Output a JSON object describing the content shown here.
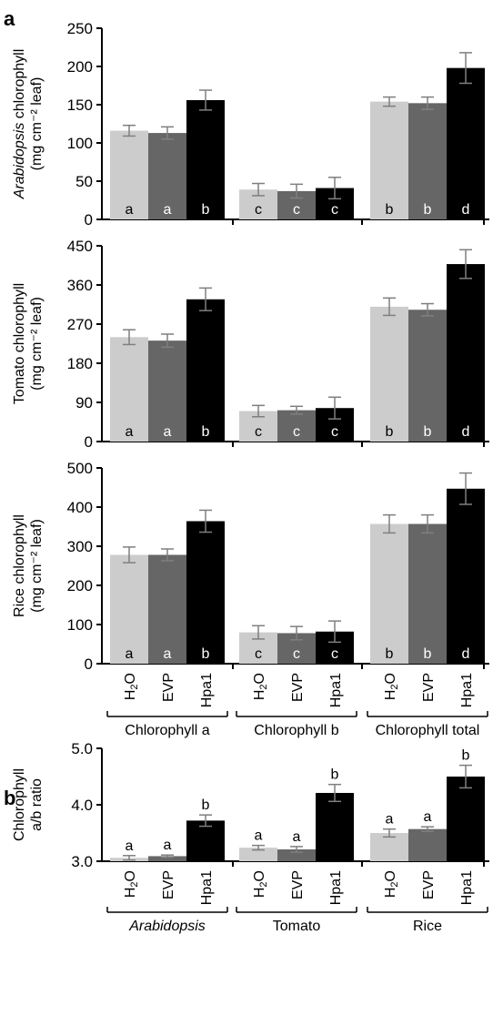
{
  "panels": {
    "a": {
      "label": "a"
    },
    "b": {
      "label": "b"
    }
  },
  "treatments": [
    "H2O",
    "EVP",
    "Hpa1"
  ],
  "colors": {
    "H2O": "#cccccc",
    "EVP": "#666666",
    "Hpa1": "#000000",
    "axis": "#000000",
    "error_bar": "#7f7f7f"
  },
  "chart_data": [
    {
      "type": "bar",
      "panel": "a",
      "ylabel_line1_italic": "Arabidopsis",
      "ylabel_line1_rest": " chlorophyll",
      "ylabel_line2": "(mg cm⁻² leaf)",
      "ylim": [
        0,
        250
      ],
      "yticks": [
        "0",
        "50",
        "100",
        "150",
        "200",
        "250"
      ],
      "groups": [
        "Chlorophyll a",
        "Chlorophyll b",
        "Chlorophyll total"
      ],
      "series": [
        {
          "name": "H2O",
          "values": [
            116,
            39,
            154
          ],
          "errors": [
            7,
            8,
            6
          ],
          "letters": [
            "a",
            "c",
            "b"
          ]
        },
        {
          "name": "EVP",
          "values": [
            113,
            37,
            152
          ],
          "errors": [
            8,
            9,
            8
          ],
          "letters": [
            "a",
            "c",
            "b"
          ]
        },
        {
          "name": "Hpa1",
          "values": [
            156,
            41,
            198
          ],
          "errors": [
            13,
            14,
            20
          ],
          "letters": [
            "b",
            "c",
            "d"
          ]
        }
      ]
    },
    {
      "type": "bar",
      "panel": "a",
      "ylabel_line1": "Tomato chlorophyll",
      "ylabel_line2": "(mg cm⁻² leaf)",
      "ylim": [
        0,
        450
      ],
      "yticks": [
        "0",
        "90",
        "180",
        "270",
        "360",
        "450"
      ],
      "groups": [
        "Chlorophyll a",
        "Chlorophyll b",
        "Chlorophyll total"
      ],
      "series": [
        {
          "name": "H2O",
          "values": [
            240,
            70,
            310
          ],
          "errors": [
            17,
            13,
            20
          ],
          "letters": [
            "a",
            "c",
            "b"
          ]
        },
        {
          "name": "EVP",
          "values": [
            232,
            72,
            303
          ],
          "errors": [
            15,
            9,
            14
          ],
          "letters": [
            "a",
            "c",
            "b"
          ]
        },
        {
          "name": "Hpa1",
          "values": [
            327,
            77,
            408
          ],
          "errors": [
            26,
            25,
            33
          ],
          "letters": [
            "b",
            "c",
            "d"
          ]
        }
      ]
    },
    {
      "type": "bar",
      "panel": "a",
      "ylabel_line1": "Rice chlorophyll",
      "ylabel_line2": "(mg cm⁻² leaf)",
      "ylim": [
        0,
        500
      ],
      "yticks": [
        "0",
        "100",
        "200",
        "300",
        "400",
        "500"
      ],
      "groups": [
        "Chlorophyll a",
        "Chlorophyll b",
        "Chlorophyll total"
      ],
      "series": [
        {
          "name": "H2O",
          "values": [
            278,
            80,
            357
          ],
          "errors": [
            20,
            17,
            23
          ],
          "letters": [
            "a",
            "c",
            "b"
          ]
        },
        {
          "name": "EVP",
          "values": [
            278,
            78,
            357
          ],
          "errors": [
            15,
            17,
            23
          ],
          "letters": [
            "a",
            "c",
            "b"
          ]
        },
        {
          "name": "Hpa1",
          "values": [
            364,
            82,
            447
          ],
          "errors": [
            28,
            27,
            40
          ],
          "letters": [
            "b",
            "c",
            "d"
          ]
        }
      ]
    },
    {
      "type": "bar",
      "panel": "b",
      "ylabel_line1": "Chlorophyll",
      "ylabel_line2": "a/b ratio",
      "ylim": [
        3.0,
        5.0
      ],
      "yticks": [
        "3.0",
        "4.0",
        "5.0"
      ],
      "groups": [
        "Arabidopsis",
        "Tomato",
        "Rice"
      ],
      "group_italic": [
        true,
        false,
        false
      ],
      "series": [
        {
          "name": "H2O",
          "values": [
            3.06,
            3.24,
            3.5
          ],
          "errors": [
            0.04,
            0.04,
            0.07
          ],
          "letters": [
            "a",
            "a",
            "a"
          ]
        },
        {
          "name": "EVP",
          "values": [
            3.09,
            3.21,
            3.57
          ],
          "errors": [
            0.02,
            0.05,
            0.04
          ],
          "letters": [
            "a",
            "a",
            "a"
          ]
        },
        {
          "name": "Hpa1",
          "values": [
            3.72,
            4.21,
            4.5
          ],
          "errors": [
            0.1,
            0.15,
            0.2
          ],
          "letters": [
            "b",
            "b",
            "b"
          ]
        }
      ]
    }
  ]
}
